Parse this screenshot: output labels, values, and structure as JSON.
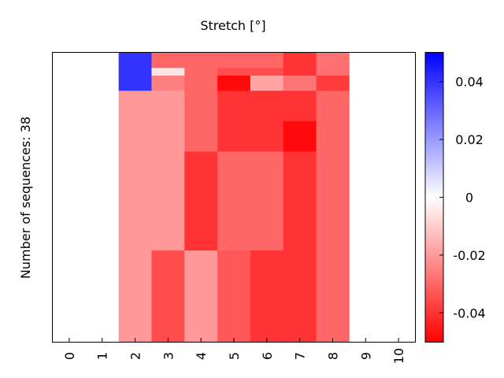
{
  "chart_data": {
    "type": "heatmap",
    "title": "Stretch [°]",
    "ylabel": "Number of sequences: 38",
    "x_ticks": [
      "0",
      "1",
      "2",
      "3",
      "4",
      "5",
      "6",
      "7",
      "8",
      "9",
      "10"
    ],
    "colorbar": {
      "range": [
        -0.05,
        0.05
      ],
      "ticks": [
        0.04,
        0.02,
        0,
        -0.02,
        -0.04
      ],
      "tick_labels": [
        "0.04",
        "0.02",
        "0",
        "-0.02",
        "-0.04"
      ],
      "low_color": "#ff0000",
      "mid_color": "#ffffff",
      "high_color": "#0000ff"
    },
    "n_rows": 38,
    "segments": [
      {
        "x": 2,
        "rows": [
          0,
          4
        ],
        "value": 0.04
      },
      {
        "x": 2,
        "rows": [
          5,
          37
        ],
        "value": -0.02
      },
      {
        "x": 3,
        "rows": [
          0,
          1
        ],
        "value": -0.03
      },
      {
        "x": 3,
        "rows": [
          2,
          2
        ],
        "value": -0.005
      },
      {
        "x": 3,
        "rows": [
          3,
          4
        ],
        "value": -0.025
      },
      {
        "x": 3,
        "rows": [
          5,
          25
        ],
        "value": -0.02
      },
      {
        "x": 3,
        "rows": [
          26,
          37
        ],
        "value": -0.035
      },
      {
        "x": 4,
        "rows": [
          0,
          12
        ],
        "value": -0.03
      },
      {
        "x": 4,
        "rows": [
          13,
          25
        ],
        "value": -0.04
      },
      {
        "x": 4,
        "rows": [
          26,
          37
        ],
        "value": -0.02
      },
      {
        "x": 5,
        "rows": [
          0,
          1
        ],
        "value": -0.03
      },
      {
        "x": 5,
        "rows": [
          2,
          2
        ],
        "value": -0.035
      },
      {
        "x": 5,
        "rows": [
          3,
          4
        ],
        "value": -0.048
      },
      {
        "x": 5,
        "rows": [
          5,
          12
        ],
        "value": -0.04
      },
      {
        "x": 5,
        "rows": [
          13,
          25
        ],
        "value": -0.03
      },
      {
        "x": 5,
        "rows": [
          26,
          37
        ],
        "value": -0.033
      },
      {
        "x": 6,
        "rows": [
          0,
          1
        ],
        "value": -0.03
      },
      {
        "x": 6,
        "rows": [
          2,
          2
        ],
        "value": -0.035
      },
      {
        "x": 6,
        "rows": [
          3,
          4
        ],
        "value": -0.018
      },
      {
        "x": 6,
        "rows": [
          5,
          12
        ],
        "value": -0.04
      },
      {
        "x": 6,
        "rows": [
          13,
          25
        ],
        "value": -0.03
      },
      {
        "x": 6,
        "rows": [
          26,
          37
        ],
        "value": -0.04
      },
      {
        "x": 7,
        "rows": [
          0,
          2
        ],
        "value": -0.04
      },
      {
        "x": 7,
        "rows": [
          3,
          4
        ],
        "value": -0.027
      },
      {
        "x": 7,
        "rows": [
          5,
          8
        ],
        "value": -0.04
      },
      {
        "x": 7,
        "rows": [
          9,
          12
        ],
        "value": -0.048
      },
      {
        "x": 7,
        "rows": [
          13,
          37
        ],
        "value": -0.04
      },
      {
        "x": 8,
        "rows": [
          0,
          2
        ],
        "value": -0.028
      },
      {
        "x": 8,
        "rows": [
          3,
          4
        ],
        "value": -0.038
      },
      {
        "x": 8,
        "rows": [
          5,
          37
        ],
        "value": -0.03
      }
    ]
  }
}
